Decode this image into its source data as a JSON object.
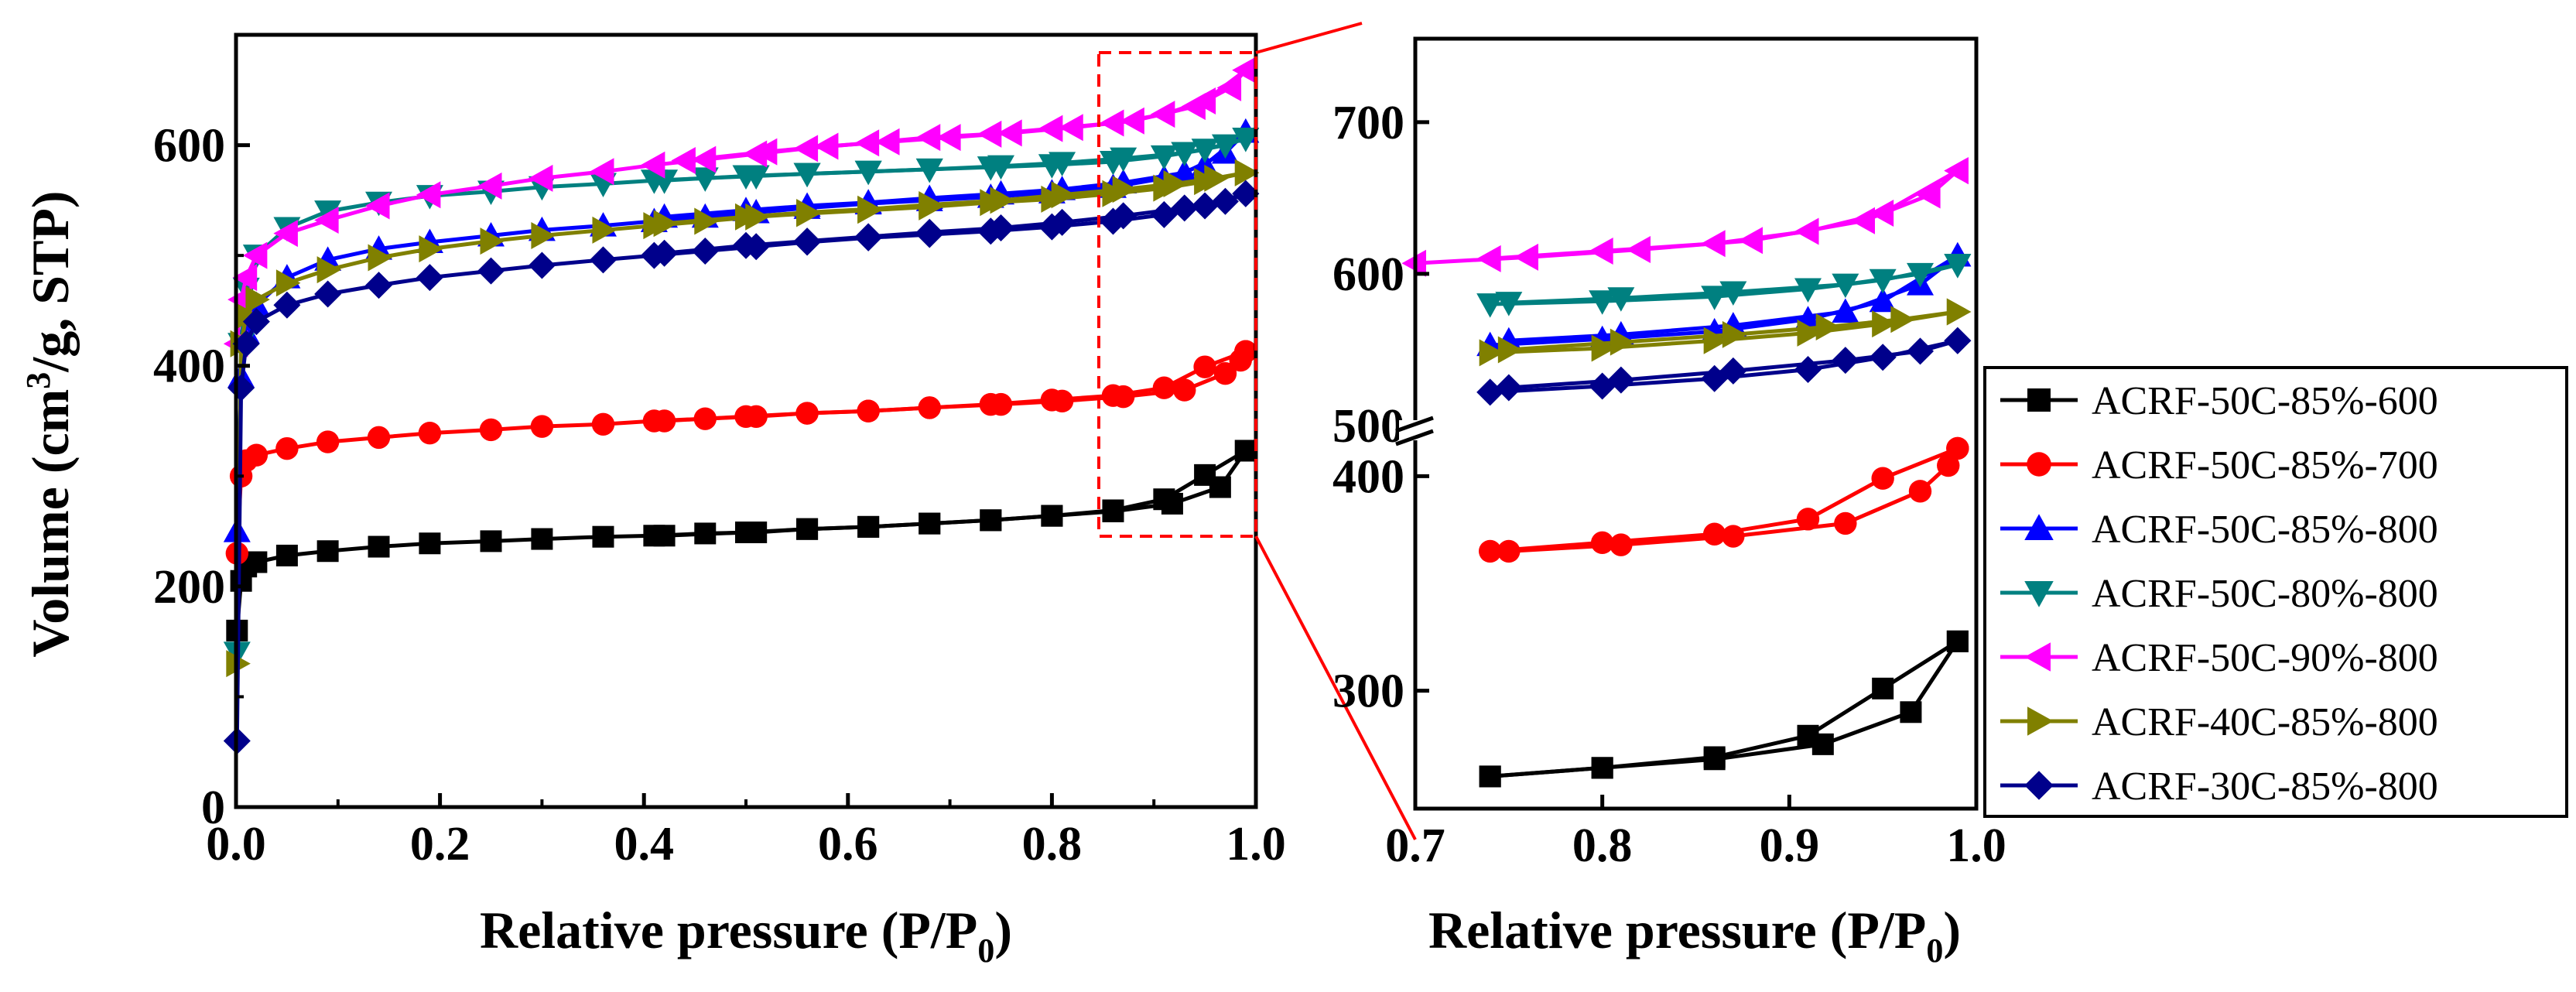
{
  "chart_data": [
    {
      "id": "main",
      "type": "line",
      "xlabel": "Relative pressure (P/P0)",
      "xlabel_parts": {
        "main": "Relative pressure (P/P",
        "sub": "0",
        "tail": ")"
      },
      "ylabel": "Volume (cm3/g, STP)",
      "ylabel_parts": {
        "pre": "Volume (cm",
        "sup": "3",
        "post": "/g, STP)"
      },
      "xlim": [
        0.0,
        1.0
      ],
      "ylim": [
        0,
        700
      ],
      "xticks": [
        "0.0",
        "0.2",
        "0.4",
        "0.6",
        "0.8",
        "1.0"
      ],
      "yticks": [
        "0",
        "200",
        "400",
        "600"
      ],
      "series_ref": "series"
    },
    {
      "id": "zoom",
      "type": "line",
      "xlabel": "Relative pressure (P/P0)",
      "xlim": [
        0.7,
        1.0
      ],
      "broken_y_axis": true,
      "lower_ylim": [
        245,
        420
      ],
      "upper_ylim": [
        500,
        755
      ],
      "xticks": [
        "0.7",
        "0.8",
        "0.9",
        "1.0"
      ],
      "yticks_lower": [
        "300",
        "400"
      ],
      "yticks_upper": [
        "500",
        "600",
        "700"
      ],
      "zoom_region": {
        "x": [
          0.85,
          1.0
        ],
        "y": [
          245,
          700
        ]
      }
    }
  ],
  "series": [
    {
      "name": "ACRF-50C-85%-600",
      "color": "#000000",
      "marker": "square",
      "adsorption": [
        [
          0.001,
          160
        ],
        [
          0.005,
          205
        ],
        [
          0.01,
          218
        ],
        [
          0.02,
          222
        ],
        [
          0.05,
          228
        ],
        [
          0.09,
          232
        ],
        [
          0.14,
          236
        ],
        [
          0.19,
          239
        ],
        [
          0.25,
          241
        ],
        [
          0.3,
          243
        ],
        [
          0.36,
          245
        ],
        [
          0.41,
          246
        ],
        [
          0.46,
          248
        ],
        [
          0.51,
          249
        ],
        [
          0.56,
          252
        ],
        [
          0.62,
          254
        ],
        [
          0.68,
          257
        ],
        [
          0.74,
          260
        ],
        [
          0.8,
          264
        ],
        [
          0.86,
          269
        ],
        [
          0.91,
          279
        ],
        [
          0.95,
          301
        ],
        [
          0.99,
          323
        ]
      ],
      "desorption": [
        [
          0.99,
          323
        ],
        [
          0.965,
          290
        ],
        [
          0.918,
          275
        ],
        [
          0.86,
          268
        ],
        [
          0.8,
          264
        ],
        [
          0.74,
          260
        ],
        [
          0.68,
          257
        ],
        [
          0.62,
          254
        ],
        [
          0.56,
          252
        ],
        [
          0.5,
          249
        ],
        [
          0.42,
          246
        ]
      ]
    },
    {
      "name": "ACRF-50C-85%-700",
      "color": "#ff0000",
      "marker": "circle",
      "adsorption": [
        [
          0.001,
          230
        ],
        [
          0.005,
          300
        ],
        [
          0.01,
          314
        ],
        [
          0.02,
          319
        ],
        [
          0.05,
          325
        ],
        [
          0.09,
          331
        ],
        [
          0.14,
          335
        ],
        [
          0.19,
          339
        ],
        [
          0.25,
          342
        ],
        [
          0.3,
          345
        ],
        [
          0.36,
          347
        ],
        [
          0.41,
          350
        ],
        [
          0.46,
          352
        ],
        [
          0.51,
          354
        ],
        [
          0.56,
          357
        ],
        [
          0.62,
          359
        ],
        [
          0.68,
          362
        ],
        [
          0.74,
          365
        ],
        [
          0.8,
          369
        ],
        [
          0.86,
          373
        ],
        [
          0.91,
          380
        ],
        [
          0.95,
          399
        ],
        [
          0.99,
          413
        ]
      ],
      "desorption": [
        [
          0.99,
          413
        ],
        [
          0.985,
          405
        ],
        [
          0.97,
          393
        ],
        [
          0.93,
          378
        ],
        [
          0.87,
          372
        ],
        [
          0.81,
          368
        ],
        [
          0.75,
          365
        ],
        [
          0.68,
          362
        ],
        [
          0.62,
          359
        ],
        [
          0.56,
          357
        ],
        [
          0.5,
          354
        ],
        [
          0.42,
          350
        ]
      ]
    },
    {
      "name": "ACRF-50C-85%-800",
      "color": "#0000ff",
      "marker": "triangle-up",
      "adsorption": [
        [
          0.001,
          250
        ],
        [
          0.005,
          390
        ],
        [
          0.01,
          430
        ],
        [
          0.02,
          455
        ],
        [
          0.05,
          480
        ],
        [
          0.09,
          496
        ],
        [
          0.14,
          506
        ],
        [
          0.19,
          512
        ],
        [
          0.25,
          518
        ],
        [
          0.3,
          523
        ],
        [
          0.36,
          527
        ],
        [
          0.41,
          531
        ],
        [
          0.46,
          535
        ],
        [
          0.51,
          539
        ],
        [
          0.56,
          543
        ],
        [
          0.62,
          547
        ],
        [
          0.68,
          550
        ],
        [
          0.74,
          553
        ],
        [
          0.8,
          557
        ],
        [
          0.86,
          562
        ],
        [
          0.91,
          570
        ],
        [
          0.95,
          582
        ],
        [
          0.99,
          612
        ]
      ],
      "desorption": [
        [
          0.99,
          612
        ],
        [
          0.97,
          593
        ],
        [
          0.93,
          575
        ],
        [
          0.87,
          566
        ],
        [
          0.81,
          560
        ],
        [
          0.75,
          556
        ],
        [
          0.68,
          552
        ],
        [
          0.62,
          548
        ],
        [
          0.56,
          545
        ],
        [
          0.5,
          541
        ],
        [
          0.42,
          535
        ]
      ]
    },
    {
      "name": "ACRF-50C-80%-800",
      "color": "#008080",
      "marker": "triangle-down",
      "adsorption": [
        [
          0.001,
          140
        ],
        [
          0.005,
          420
        ],
        [
          0.01,
          470
        ],
        [
          0.02,
          500
        ],
        [
          0.05,
          525
        ],
        [
          0.09,
          540
        ],
        [
          0.14,
          548
        ],
        [
          0.19,
          554
        ],
        [
          0.25,
          558
        ],
        [
          0.3,
          562
        ],
        [
          0.36,
          565
        ],
        [
          0.41,
          568
        ],
        [
          0.46,
          570
        ],
        [
          0.51,
          572
        ],
        [
          0.56,
          574
        ],
        [
          0.62,
          576
        ],
        [
          0.68,
          578
        ],
        [
          0.74,
          580
        ],
        [
          0.8,
          582
        ],
        [
          0.86,
          585
        ],
        [
          0.91,
          590
        ],
        [
          0.95,
          596
        ],
        [
          0.99,
          606
        ]
      ],
      "desorption": [
        [
          0.99,
          606
        ],
        [
          0.97,
          600
        ],
        [
          0.93,
          593
        ],
        [
          0.87,
          588
        ],
        [
          0.81,
          584
        ],
        [
          0.75,
          581
        ],
        [
          0.68,
          578
        ],
        [
          0.62,
          576
        ],
        [
          0.56,
          574
        ],
        [
          0.5,
          572
        ],
        [
          0.42,
          568
        ]
      ]
    },
    {
      "name": "ACRF-50C-90%-800",
      "color": "#ff00ff",
      "marker": "triangle-left",
      "adsorption": [
        [
          0.001,
          420
        ],
        [
          0.005,
          460
        ],
        [
          0.01,
          480
        ],
        [
          0.02,
          500
        ],
        [
          0.05,
          520
        ],
        [
          0.09,
          532
        ],
        [
          0.14,
          545
        ],
        [
          0.19,
          555
        ],
        [
          0.25,
          563
        ],
        [
          0.3,
          570
        ],
        [
          0.36,
          576
        ],
        [
          0.41,
          582
        ],
        [
          0.46,
          587
        ],
        [
          0.51,
          592
        ],
        [
          0.56,
          597
        ],
        [
          0.62,
          602
        ],
        [
          0.68,
          607
        ],
        [
          0.74,
          610
        ],
        [
          0.8,
          615
        ],
        [
          0.86,
          620
        ],
        [
          0.91,
          628
        ],
        [
          0.95,
          640
        ],
        [
          0.99,
          668
        ]
      ],
      "desorption": [
        [
          0.99,
          668
        ],
        [
          0.975,
          652
        ],
        [
          0.94,
          635
        ],
        [
          0.88,
          622
        ],
        [
          0.82,
          616
        ],
        [
          0.76,
          611
        ],
        [
          0.7,
          607
        ],
        [
          0.64,
          603
        ],
        [
          0.58,
          599
        ],
        [
          0.52,
          594
        ],
        [
          0.44,
          586
        ]
      ]
    },
    {
      "name": "ACRF-40C-85%-800",
      "color": "#808000",
      "marker": "triangle-right",
      "adsorption": [
        [
          0.001,
          130
        ],
        [
          0.005,
          420
        ],
        [
          0.01,
          445
        ],
        [
          0.02,
          460
        ],
        [
          0.05,
          475
        ],
        [
          0.09,
          487
        ],
        [
          0.14,
          498
        ],
        [
          0.19,
          506
        ],
        [
          0.25,
          513
        ],
        [
          0.3,
          518
        ],
        [
          0.36,
          523
        ],
        [
          0.41,
          527
        ],
        [
          0.46,
          531
        ],
        [
          0.51,
          535
        ],
        [
          0.56,
          538
        ],
        [
          0.62,
          541
        ],
        [
          0.68,
          544
        ],
        [
          0.74,
          548
        ],
        [
          0.8,
          551
        ],
        [
          0.86,
          556
        ],
        [
          0.91,
          561
        ],
        [
          0.95,
          567
        ],
        [
          0.99,
          575
        ]
      ],
      "desorption": [
        [
          0.99,
          575
        ],
        [
          0.96,
          570
        ],
        [
          0.92,
          565
        ],
        [
          0.87,
          560
        ],
        [
          0.81,
          555
        ],
        [
          0.75,
          550
        ],
        [
          0.68,
          546
        ],
        [
          0.62,
          542
        ],
        [
          0.56,
          539
        ],
        [
          0.5,
          535
        ],
        [
          0.42,
          529
        ]
      ]
    },
    {
      "name": "ACRF-30C-85%-800",
      "color": "#00008b",
      "marker": "diamond",
      "adsorption": [
        [
          0.001,
          60
        ],
        [
          0.005,
          380
        ],
        [
          0.01,
          420
        ],
        [
          0.02,
          440
        ],
        [
          0.05,
          455
        ],
        [
          0.09,
          465
        ],
        [
          0.14,
          473
        ],
        [
          0.19,
          480
        ],
        [
          0.25,
          486
        ],
        [
          0.3,
          491
        ],
        [
          0.36,
          496
        ],
        [
          0.41,
          500
        ],
        [
          0.46,
          504
        ],
        [
          0.51,
          508
        ],
        [
          0.56,
          512
        ],
        [
          0.62,
          516
        ],
        [
          0.68,
          519
        ],
        [
          0.74,
          522
        ],
        [
          0.8,
          526
        ],
        [
          0.86,
          531
        ],
        [
          0.91,
          537
        ],
        [
          0.95,
          545
        ],
        [
          0.99,
          556
        ]
      ],
      "desorption": [
        [
          0.99,
          556
        ],
        [
          0.97,
          549
        ],
        [
          0.93,
          543
        ],
        [
          0.87,
          536
        ],
        [
          0.81,
          530
        ],
        [
          0.75,
          525
        ],
        [
          0.68,
          521
        ],
        [
          0.62,
          517
        ],
        [
          0.56,
          513
        ],
        [
          0.5,
          509
        ],
        [
          0.42,
          502
        ]
      ]
    }
  ]
}
